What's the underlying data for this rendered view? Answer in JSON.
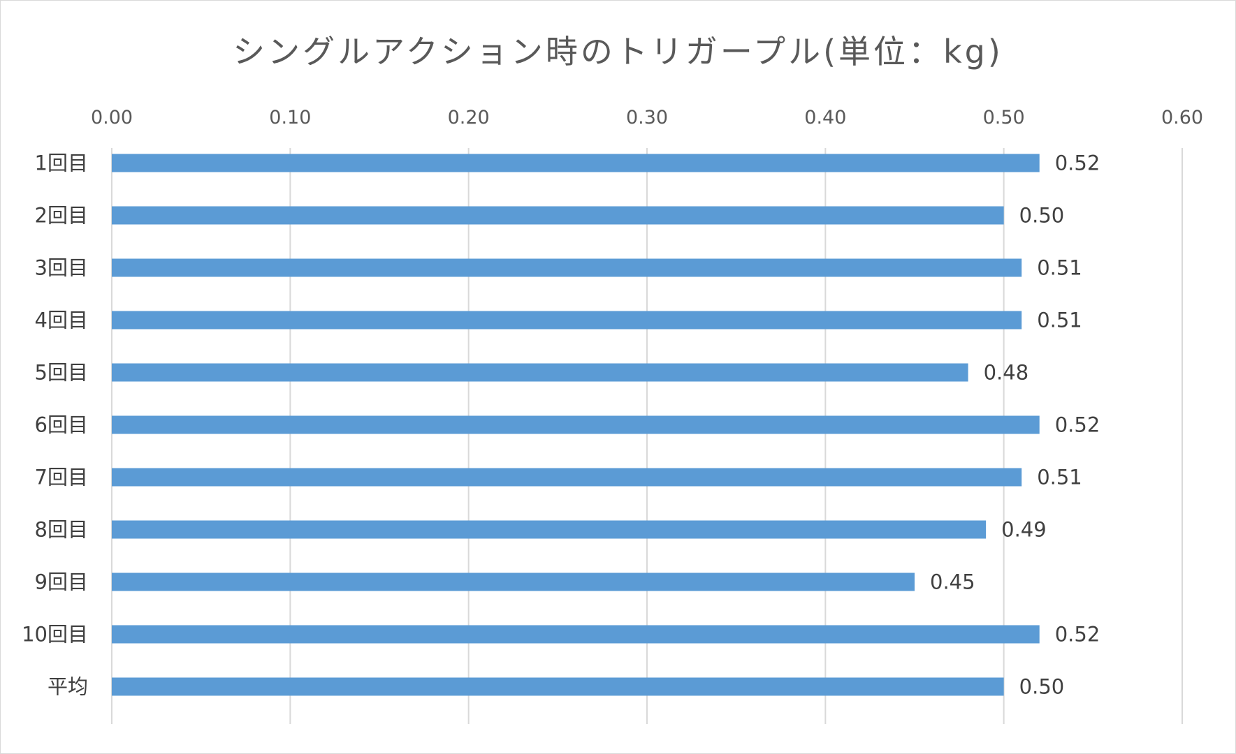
{
  "chart_data": {
    "type": "bar",
    "orientation": "horizontal",
    "title": "シングルアクション時のトリガープル(単位：kg)",
    "categories": [
      "1回目",
      "2回目",
      "3回目",
      "4回目",
      "5回目",
      "6回目",
      "7回目",
      "8回目",
      "9回目",
      "10回目",
      "平均"
    ],
    "values": [
      0.52,
      0.5,
      0.51,
      0.51,
      0.48,
      0.52,
      0.51,
      0.49,
      0.45,
      0.52,
      0.5
    ],
    "value_labels": [
      "0.52",
      "0.50",
      "0.51",
      "0.51",
      "0.48",
      "0.52",
      "0.51",
      "0.49",
      "0.45",
      "0.52",
      "0.50"
    ],
    "xlim": [
      0,
      0.6
    ],
    "xticks": [
      "0.00",
      "0.10",
      "0.20",
      "0.30",
      "0.40",
      "0.50",
      "0.60"
    ],
    "xaxis_position": "top",
    "grid": true,
    "legend": "none",
    "bar_color": "#5b9bd5",
    "grid_color": "#d9d9d9"
  }
}
